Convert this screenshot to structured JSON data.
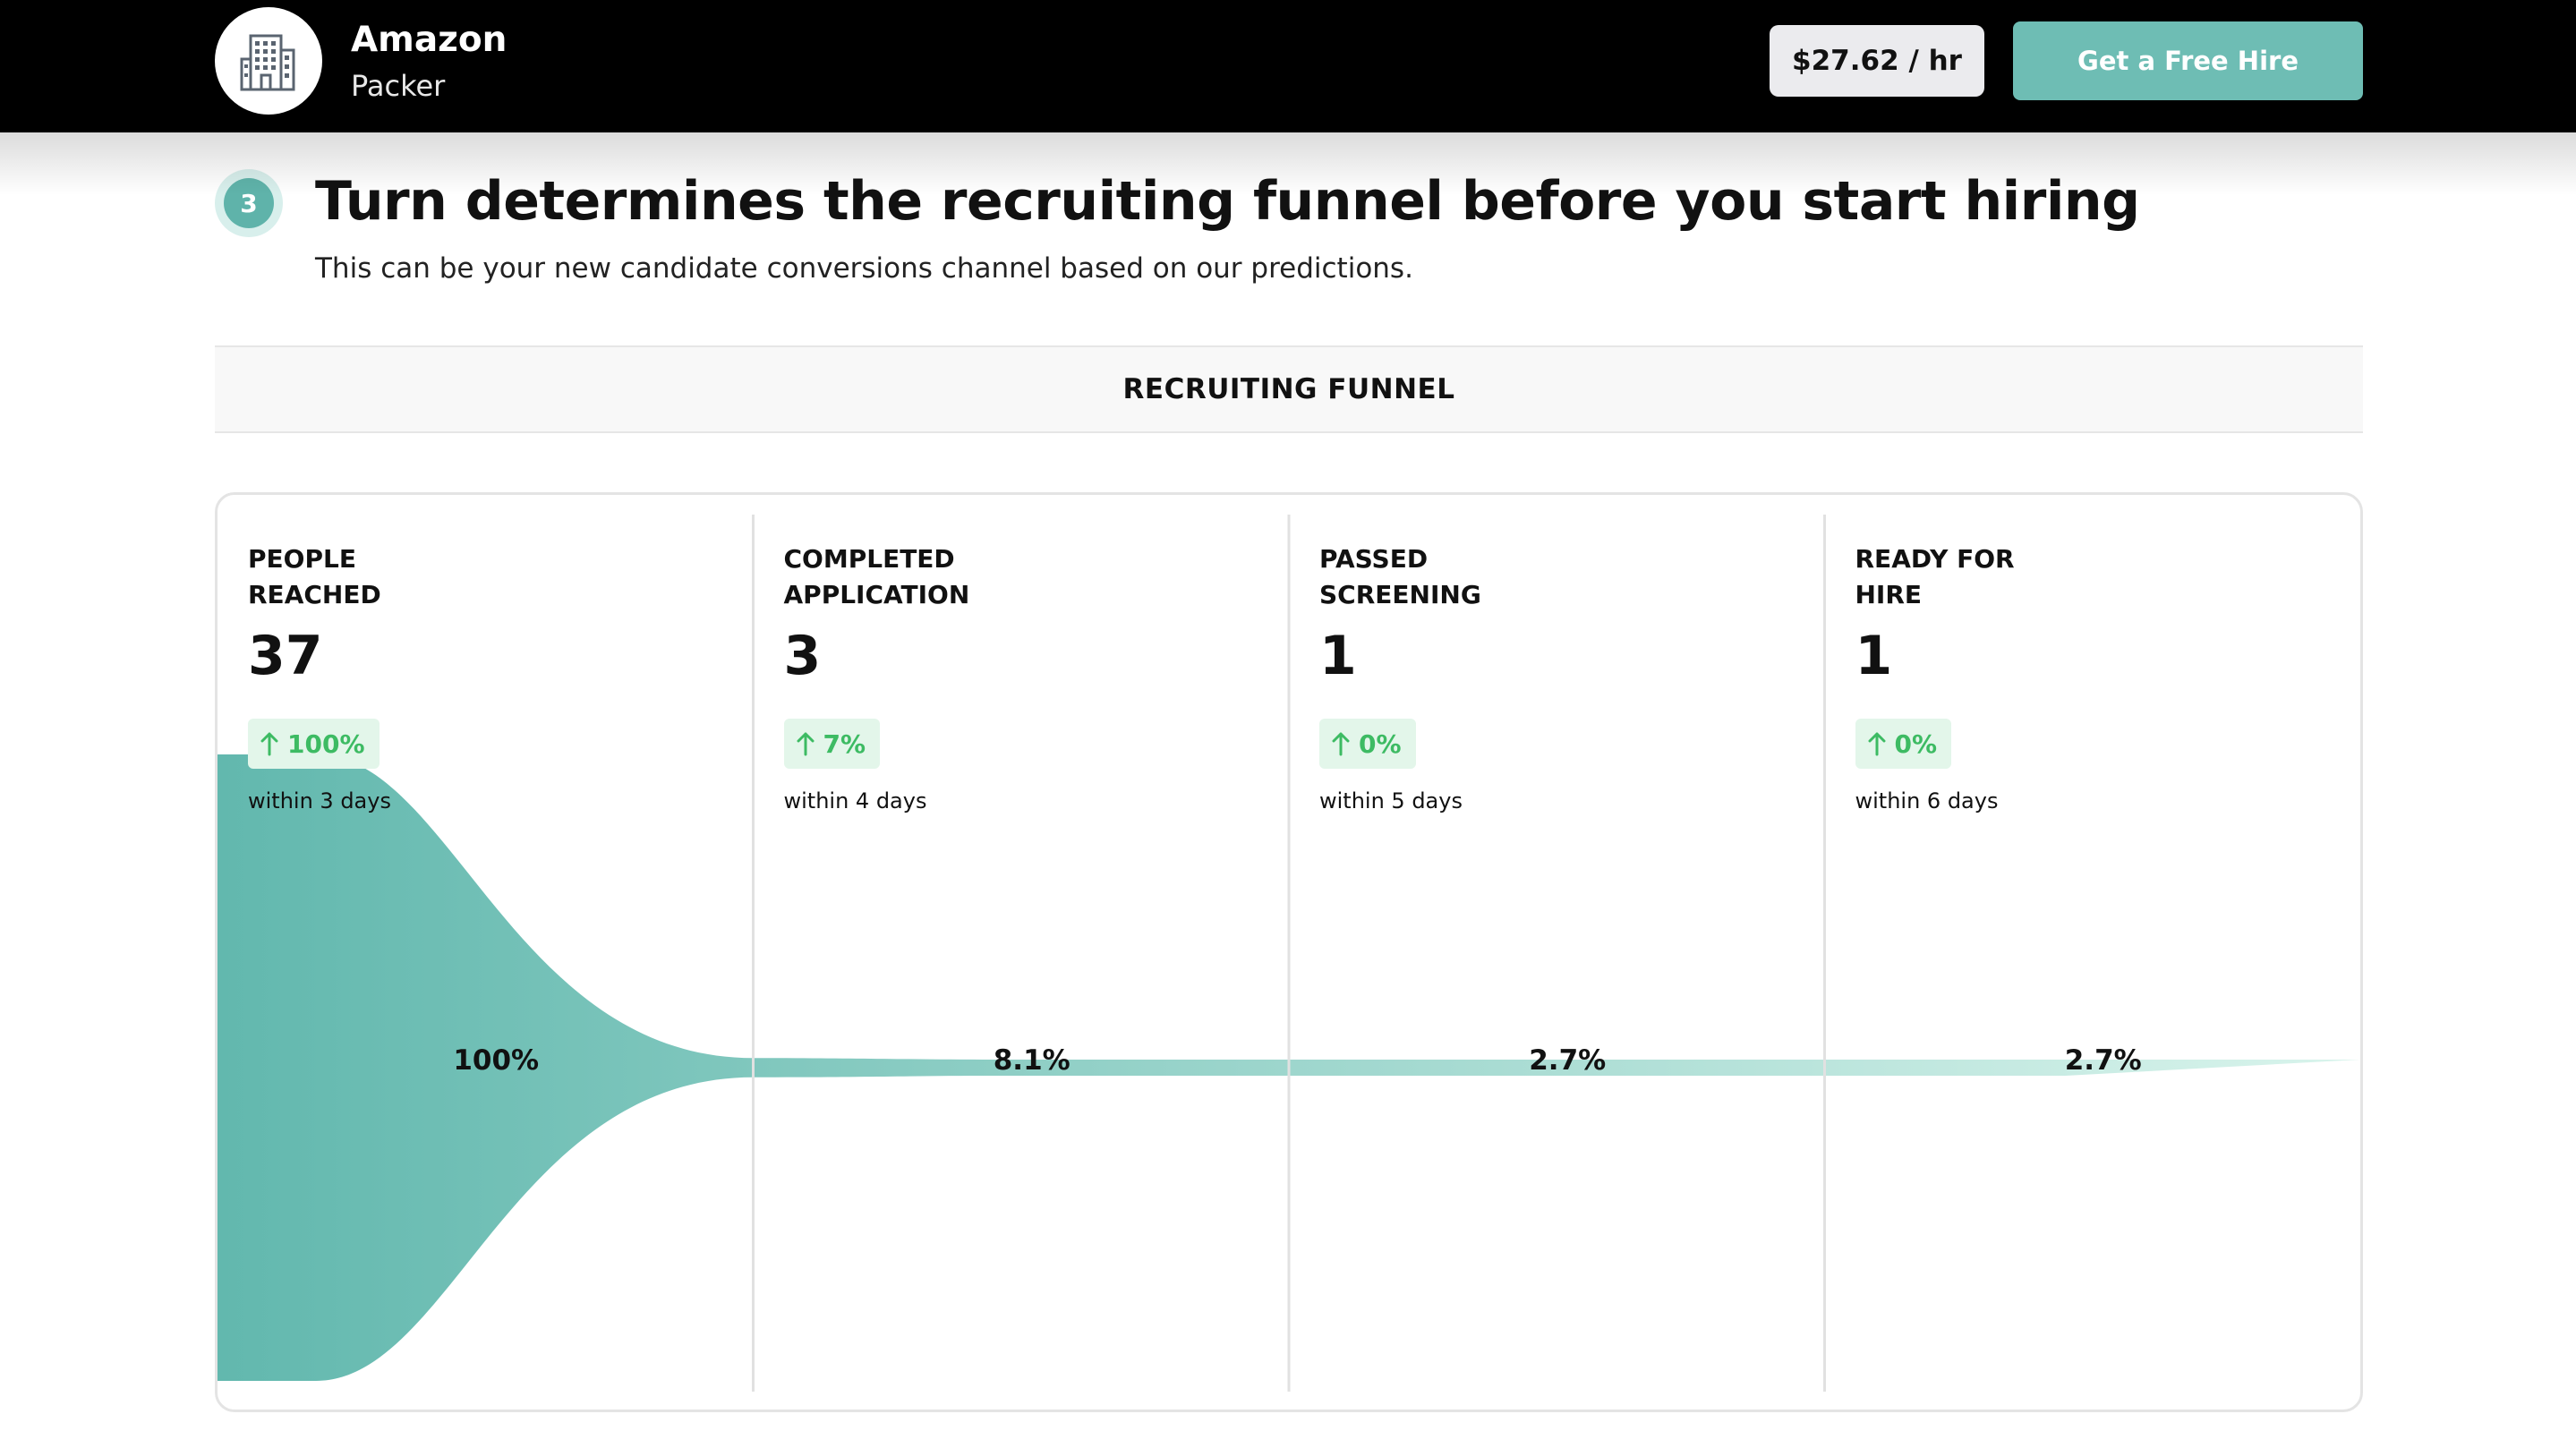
{
  "header": {
    "company": "Amazon",
    "job_title": "Packer",
    "logo_icon": "building-icon",
    "wage": "$27.62 / hr",
    "cta_label": "Get a Free Hire"
  },
  "section": {
    "step_number": "3",
    "title": "Turn determines the recruiting funnel before you start hiring",
    "subtitle": "This can be your new candidate conversions channel based on our predictions.",
    "funnel_heading": "RECRUITING FUNNEL"
  },
  "colors": {
    "accent": "#6ebdb4",
    "funnel_start": "#62b8ae",
    "funnel_end": "#d9f4ec",
    "delta_green": "#3dbb63",
    "delta_bg": "#e3f6ea"
  },
  "stages": [
    {
      "label": "PEOPLE REACHED",
      "count": "37",
      "delta": "100%",
      "window": "within 3 days",
      "percent": "100%"
    },
    {
      "label": "COMPLETED APPLICATION",
      "count": "3",
      "delta": "7%",
      "window": "within 4 days",
      "percent": "8.1%"
    },
    {
      "label": "PASSED SCREENING",
      "count": "1",
      "delta": "0%",
      "window": "within 5 days",
      "percent": "2.7%"
    },
    {
      "label": "READY FOR HIRE",
      "count": "1",
      "delta": "0%",
      "window": "within 6 days",
      "percent": "2.7%"
    }
  ],
  "chart_data": {
    "type": "area",
    "categories": [
      "PEOPLE REACHED",
      "COMPLETED APPLICATION",
      "PASSED SCREENING",
      "READY FOR HIRE"
    ],
    "values": [
      100,
      8.1,
      2.7,
      2.7
    ],
    "counts": [
      37,
      3,
      1,
      1
    ],
    "title": "RECRUITING FUNNEL"
  }
}
